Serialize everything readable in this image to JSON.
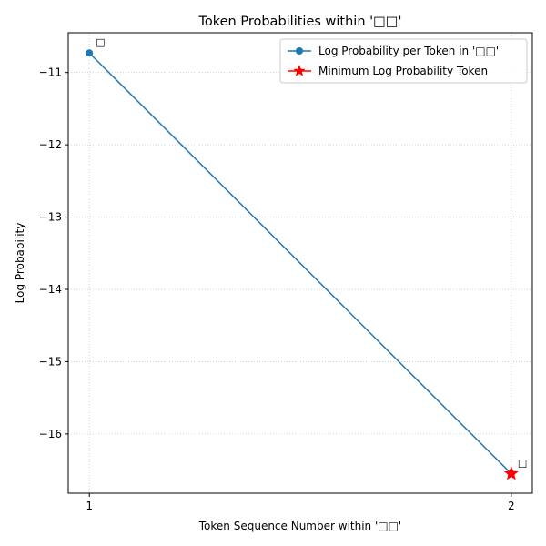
{
  "chart_data": {
    "type": "line",
    "title": "Token Probabilities within '□□'",
    "xlabel": "Token Sequence Number within '□□'",
    "ylabel": "Log Probability",
    "x": [
      1,
      2
    ],
    "xticks": [
      "1",
      "2"
    ],
    "xlim": [
      0.95,
      2.05
    ],
    "ylim": [
      -16.82,
      -10.45
    ],
    "yticks": [
      -11,
      -12,
      -13,
      -14,
      -15,
      -16
    ],
    "ytick_labels": [
      "−11",
      "−12",
      "−13",
      "−14",
      "−15",
      "−16"
    ],
    "grid": true,
    "legend_placement": "top-right",
    "series": [
      {
        "name": "Log Probability per Token in '□□'",
        "values": [
          -10.73,
          -16.55
        ],
        "color": "#1f77b4",
        "marker": "circle"
      }
    ],
    "highlight": {
      "name": "Minimum Log Probability Token",
      "x": 2,
      "y": -16.55,
      "color": "#ff0000",
      "marker": "star"
    },
    "annotations": [
      {
        "x": 1,
        "y": -10.73,
        "text": "□"
      },
      {
        "x": 2,
        "y": -16.55,
        "text": "□"
      }
    ]
  }
}
